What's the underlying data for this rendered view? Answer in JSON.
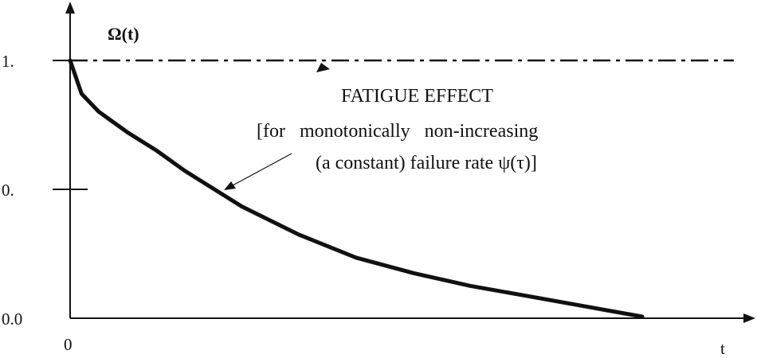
{
  "chart_data": {
    "type": "line",
    "ylabel": "Ω(t)",
    "xlabel": "t",
    "x_tick_labels": [
      "0"
    ],
    "y_tick_labels": [
      {
        "label": "1.",
        "value": 1.0
      },
      {
        "label": "0.",
        "value": 0.5
      },
      {
        "label": "0.0",
        "value": 0.0
      }
    ],
    "ylim": [
      0,
      1.0
    ],
    "xlim": [
      0,
      1.0
    ],
    "grid": false,
    "series": [
      {
        "style": "solid",
        "x": [
          0,
          0.02,
          0.05,
          0.1,
          0.15,
          0.2,
          0.25,
          0.3,
          0.4,
          0.5,
          0.6,
          0.7,
          0.8,
          0.9,
          1.0
        ],
        "y": [
          1.0,
          0.87,
          0.8,
          0.72,
          0.65,
          0.57,
          0.5,
          0.43,
          0.32,
          0.23,
          0.17,
          0.12,
          0.08,
          0.04,
          0.0
        ]
      },
      {
        "style": "dash-dot",
        "x": [
          0,
          1.16
        ],
        "y": [
          1.0,
          1.0
        ]
      }
    ],
    "annotations": {
      "line1": "FATIGUE EFFECT",
      "line2": "[for   monotonically   non-increasing",
      "line3": "(a constant) failure rate ψ(τ)]"
    }
  }
}
